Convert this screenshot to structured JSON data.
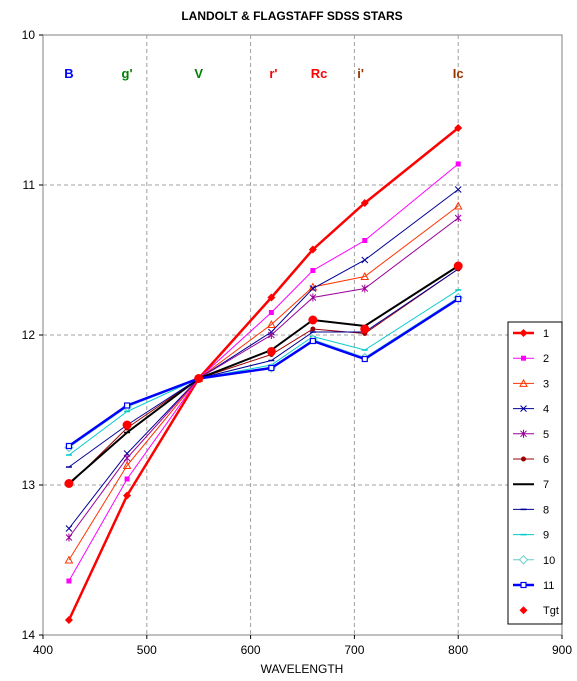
{
  "chart_data": {
    "type": "line",
    "title": "LANDOLT & FLAGSTAFF SDSS STARS",
    "xlabel": "WAVELENGTH",
    "ylabel": "",
    "xlim": [
      400,
      900
    ],
    "ylim": [
      10,
      14
    ],
    "y_reversed": true,
    "x_ticks": [
      400,
      500,
      600,
      700,
      800,
      900
    ],
    "y_ticks": [
      10,
      11,
      12,
      13,
      14
    ],
    "grid": "dashed",
    "legend_position": "right",
    "x": [
      425,
      481,
      550,
      620,
      660,
      710,
      800
    ],
    "bands": [
      {
        "label": "B",
        "x": 425,
        "color": "#0000ff"
      },
      {
        "label": "g'",
        "x": 481,
        "color": "#008000"
      },
      {
        "label": "V",
        "x": 550,
        "color": "#008000"
      },
      {
        "label": "r'",
        "x": 622,
        "color": "#ff0000"
      },
      {
        "label": "Rc",
        "x": 666,
        "color": "#ff0000"
      },
      {
        "label": "i'",
        "x": 706,
        "color": "#993300"
      },
      {
        "label": "Ic",
        "x": 800,
        "color": "#993300"
      }
    ],
    "series": [
      {
        "name": "1",
        "color": "#ff0000",
        "width": 2.5,
        "marker": "diamond",
        "values": [
          13.9,
          13.07,
          12.29,
          11.75,
          11.43,
          11.12,
          10.62
        ]
      },
      {
        "name": "2",
        "color": "#ff00ff",
        "width": 1,
        "marker": "square",
        "values": [
          13.64,
          12.96,
          12.29,
          11.85,
          11.57,
          11.37,
          10.86
        ]
      },
      {
        "name": "3",
        "color": "#ff3300",
        "width": 1,
        "marker": "triangle",
        "values": [
          13.5,
          12.87,
          12.29,
          11.93,
          11.68,
          11.61,
          11.14
        ]
      },
      {
        "name": "4",
        "color": "#000099",
        "width": 1,
        "marker": "x",
        "values": [
          13.29,
          12.79,
          12.29,
          11.98,
          11.69,
          11.5,
          11.03
        ]
      },
      {
        "name": "5",
        "color": "#990099",
        "width": 1,
        "marker": "star",
        "values": [
          13.35,
          12.82,
          12.29,
          12.0,
          11.75,
          11.69,
          11.22
        ]
      },
      {
        "name": "6",
        "color": "#990000",
        "width": 1,
        "marker": "circle",
        "values": [
          13.0,
          12.62,
          12.29,
          12.13,
          11.96,
          11.99,
          11.56
        ]
      },
      {
        "name": "7",
        "color": "#000000",
        "width": 2,
        "marker": "dash",
        "values": [
          12.99,
          12.65,
          12.29,
          12.1,
          11.9,
          11.94,
          11.54
        ]
      },
      {
        "name": "8",
        "color": "#000099",
        "width": 1,
        "marker": "dash",
        "values": [
          12.88,
          12.6,
          12.29,
          12.17,
          11.98,
          11.98,
          11.56
        ]
      },
      {
        "name": "9",
        "color": "#00cccc",
        "width": 1,
        "marker": "dash",
        "values": [
          12.8,
          12.51,
          12.29,
          12.2,
          12.01,
          12.1,
          11.7
        ]
      },
      {
        "name": "10",
        "color": "#66cccc",
        "width": 1,
        "marker": "diamond-open",
        "values": [
          12.75,
          12.48,
          12.29,
          12.22,
          12.03,
          12.15,
          11.75
        ]
      },
      {
        "name": "11",
        "color": "#0000ff",
        "width": 2.5,
        "marker": "square-open",
        "values": [
          12.74,
          12.47,
          12.29,
          12.22,
          12.04,
          12.16,
          11.76
        ]
      },
      {
        "name": "Tgt",
        "color": "#ff0000",
        "width": 0,
        "marker": "dot",
        "values": [
          12.99,
          12.6,
          12.29,
          12.11,
          11.9,
          11.96,
          11.54
        ]
      }
    ]
  }
}
